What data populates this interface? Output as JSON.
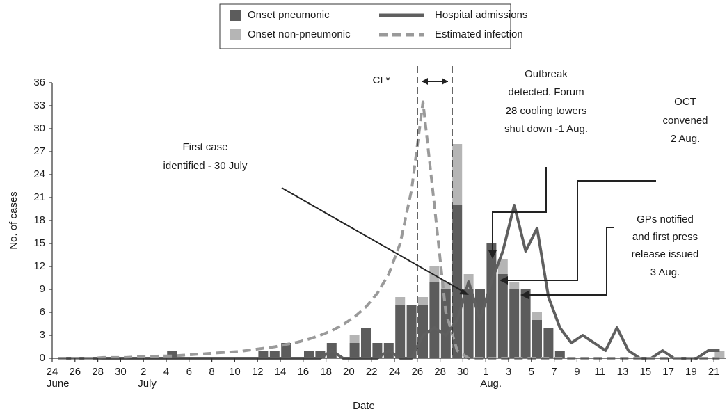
{
  "chart_data": {
    "type": "bar",
    "title_x": "Date",
    "title_y": "No. of cases",
    "categories": [
      "24",
      null,
      "26",
      null,
      "28",
      null,
      "30",
      null,
      "2",
      null,
      "4",
      null,
      "6",
      null,
      "8",
      null,
      "10",
      null,
      "12",
      null,
      "14",
      null,
      "16",
      null,
      "18",
      null,
      "20",
      null,
      "22",
      null,
      "24",
      null,
      "26",
      null,
      "28",
      null,
      "30",
      null,
      "1",
      null,
      "3",
      null,
      "5",
      null,
      "7",
      null,
      "9",
      null,
      "11",
      null,
      "13",
      null,
      "15",
      null,
      "17",
      null,
      "19",
      null,
      "21"
    ],
    "category_months": [
      "June",
      null,
      null,
      null,
      null,
      null,
      null,
      null,
      "July",
      null,
      null,
      null,
      null,
      null,
      null,
      null,
      null,
      null,
      null,
      null,
      null,
      null,
      null,
      null,
      null,
      null,
      null,
      null,
      null,
      null,
      null,
      null,
      null,
      null,
      null,
      null,
      null,
      null,
      "Aug.",
      null,
      null,
      null,
      null,
      null,
      null,
      null,
      null,
      null,
      null,
      null,
      null,
      null,
      null,
      null,
      null,
      null,
      null,
      null,
      null
    ],
    "ylim": [
      0,
      36
    ],
    "yticks": [
      0,
      3,
      6,
      9,
      12,
      15,
      18,
      21,
      24,
      27,
      30,
      33,
      36
    ],
    "series": [
      {
        "name": "Onset pneumonic",
        "type": "bar",
        "color": "#5c5c5c",
        "values": [
          0,
          0,
          0,
          0,
          0,
          0,
          0,
          0,
          0,
          0,
          1,
          0,
          0,
          0,
          0,
          0,
          0,
          0,
          1,
          1,
          2,
          0,
          1,
          1,
          2,
          0,
          2,
          4,
          2,
          2,
          7,
          7,
          7,
          10,
          9,
          20,
          9,
          9,
          15,
          11,
          9,
          9,
          5,
          4,
          1,
          0,
          0,
          0,
          0,
          0,
          0,
          0,
          0,
          0,
          0,
          0,
          0,
          0,
          0
        ]
      },
      {
        "name": "Onset non-pneumonic",
        "type": "bar",
        "color": "#b5b5b5",
        "values": [
          0,
          0,
          0,
          0,
          0,
          0,
          0,
          0,
          0,
          0,
          0,
          0,
          0,
          0,
          0,
          0,
          0,
          0,
          0,
          0,
          0,
          0,
          0,
          0,
          0,
          0,
          1,
          0,
          0,
          0,
          1,
          0,
          1,
          2,
          1,
          8,
          2,
          0,
          0,
          2,
          1,
          0,
          1,
          0,
          0,
          0,
          0,
          0,
          0,
          0,
          0,
          0,
          0,
          0,
          0,
          0,
          0,
          0,
          1
        ]
      },
      {
        "name": "Hospital admissions",
        "type": "line",
        "dashed": false,
        "color": "#5f5f5f",
        "values": [
          0,
          0,
          0,
          0,
          0,
          0,
          0,
          0,
          0,
          0,
          0,
          0,
          0,
          0,
          0,
          0,
          0,
          0,
          0,
          0,
          0,
          0,
          0,
          0,
          1,
          0,
          0,
          0,
          0,
          1,
          0,
          0,
          3,
          4,
          3,
          5,
          10,
          5,
          10,
          14,
          20,
          14,
          17,
          8,
          4,
          2,
          3,
          2,
          1,
          4,
          1,
          0,
          0,
          1,
          0,
          0,
          0,
          1,
          1
        ]
      },
      {
        "name": "Estimated infection",
        "type": "line",
        "dashed": true,
        "color": "#9a9a9a",
        "values": [
          0,
          0,
          0,
          0,
          0.1,
          0.1,
          0.1,
          0.2,
          0.2,
          0.3,
          0.3,
          0.4,
          0.5,
          0.6,
          0.7,
          0.8,
          0.9,
          1.1,
          1.3,
          1.5,
          1.8,
          2.1,
          2.5,
          3,
          3.6,
          4.4,
          5.4,
          6.7,
          8.5,
          11,
          15,
          22,
          33.5,
          20,
          6,
          1,
          0,
          0,
          0,
          0,
          0,
          0,
          0,
          0,
          0,
          0,
          0,
          0,
          0,
          0,
          0,
          0,
          0,
          0,
          0,
          0,
          0,
          0,
          0
        ]
      }
    ],
    "annotations": [
      [
        "CI *"
      ],
      [
        "First case",
        "identified - 30 July"
      ],
      [
        "Outbreak",
        "detected. Forum",
        "28 cooling  towers",
        "shut down -1 Aug."
      ],
      [
        "OCT",
        "convened",
        "2 Aug."
      ],
      [
        "GPs notified",
        "and first press",
        "release issued",
        "3 Aug."
      ]
    ]
  }
}
